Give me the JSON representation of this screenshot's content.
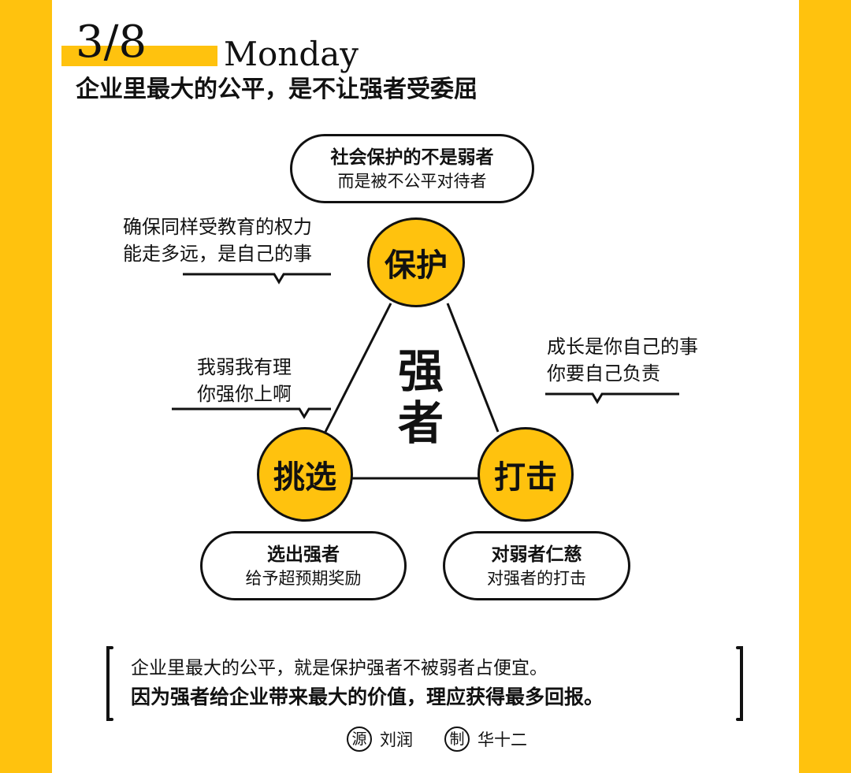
{
  "header": {
    "date": "3/8",
    "weekday": "Monday",
    "headline": "企业里最大的公平，是不让强者受委屈"
  },
  "colors": {
    "accent": "#FFC20E",
    "ink": "#111111",
    "background": "#FFFFFF"
  },
  "diagram": {
    "center_label_1": "强",
    "center_label_2": "者",
    "nodes": {
      "protect": "保护",
      "select": "挑选",
      "strike": "打击"
    },
    "boxes": {
      "protect": {
        "title": "社会保护的不是弱者",
        "subtitle": "而是被不公平对待者"
      },
      "select": {
        "title": "选出强者",
        "subtitle": "给予超预期奖励"
      },
      "strike": {
        "title": "对弱者仁慈",
        "subtitle": "对强者的打击"
      }
    },
    "notes": {
      "protect_line1": "确保同样受教育的权力",
      "protect_line2": "能走多远，是自己的事",
      "select_line1": "我弱我有理",
      "select_line2": "你强你上啊",
      "strike_line1": "成长是你自己的事",
      "strike_line2": "你要自己负责"
    }
  },
  "quote": {
    "line1": "企业里最大的公平，就是保护强者不被弱者占便宜。",
    "line2": "因为强者给企业带来最大的价值，理应获得最多回报。"
  },
  "credits": {
    "source_badge": "源",
    "source_name": "刘润",
    "maker_badge": "制",
    "maker_name": "华十二"
  }
}
